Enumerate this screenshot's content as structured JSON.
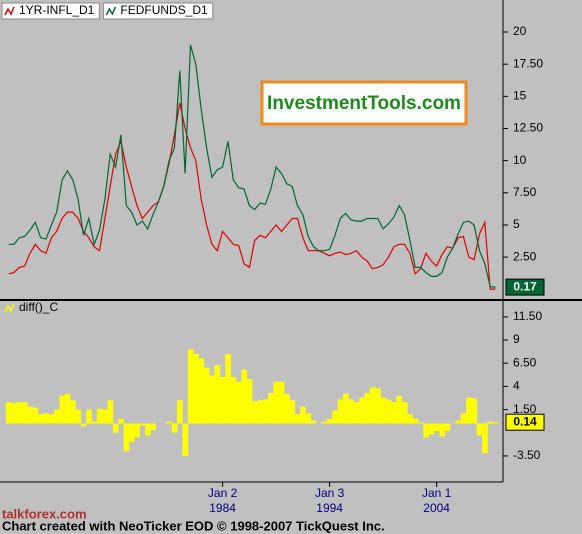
{
  "chart_data": [
    {
      "type": "line",
      "x": [
        1964,
        1964.5,
        1965,
        1965.5,
        1966,
        1966.5,
        1967,
        1967.5,
        1968,
        1968.5,
        1969,
        1969.5,
        1970,
        1970.5,
        1971,
        1971.5,
        1972,
        1972.5,
        1973,
        1973.5,
        1974,
        1974.5,
        1975,
        1975.5,
        1976,
        1976.5,
        1977,
        1977.5,
        1978,
        1978.5,
        1979,
        1979.5,
        1980,
        1980.5,
        1981,
        1981.5,
        1982,
        1982.5,
        1983,
        1983.5,
        1984,
        1984.5,
        1985,
        1985.5,
        1986,
        1986.5,
        1987,
        1987.5,
        1988,
        1988.5,
        1989,
        1989.5,
        1990,
        1990.5,
        1991,
        1991.5,
        1992,
        1992.5,
        1993,
        1993.5,
        1994,
        1994.5,
        1995,
        1995.5,
        1996,
        1996.5,
        1997,
        1997.5,
        1998,
        1998.5,
        1999,
        1999.5,
        2000,
        2000.5,
        2001,
        2001.5,
        2002,
        2002.5,
        2003,
        2003.5,
        2004,
        2004.5,
        2005,
        2005.5,
        2006,
        2006.5,
        2007,
        2007.5,
        2008,
        2008.5,
        2009,
        2009.5
      ],
      "series": [
        {
          "name": "1YR-INFL_D1",
          "color": "#e00000",
          "values": [
            1.2,
            1.3,
            1.7,
            1.8,
            2.8,
            3.5,
            3.0,
            2.8,
            4.0,
            4.5,
            5.5,
            6.0,
            6.0,
            5.5,
            4.5,
            4.0,
            3.3,
            3.0,
            5.5,
            8.0,
            10.5,
            11.5,
            9.5,
            8.0,
            6.5,
            5.5,
            6.0,
            6.5,
            6.8,
            8.0,
            9.8,
            12,
            14.5,
            12.5,
            11,
            10,
            7,
            5,
            3.5,
            3.0,
            4.5,
            4.0,
            3.5,
            3.4,
            2.0,
            1.7,
            3.8,
            4.2,
            4.0,
            4.5,
            5.0,
            4.5,
            5.0,
            5.5,
            5.5,
            4.0,
            3.0,
            3.0,
            3.0,
            2.8,
            2.6,
            2.8,
            2.9,
            2.7,
            2.8,
            3.0,
            2.5,
            2.2,
            1.6,
            1.7,
            1.9,
            2.5,
            3.3,
            3.5,
            3.5,
            2.8,
            1.2,
            1.6,
            2.8,
            2.2,
            1.8,
            2.7,
            3.3,
            3.2,
            4.0,
            4.1,
            2.5,
            2.3,
            4.3,
            5.2,
            0.0,
            0.03
          ]
        },
        {
          "name": "FEDFUNDS_D1",
          "color": "#006633",
          "values": [
            3.5,
            3.5,
            4.0,
            4.1,
            4.6,
            5.2,
            4.0,
            3.9,
            5.0,
            6.0,
            8.5,
            9.2,
            8.5,
            7.0,
            4.2,
            5.5,
            3.5,
            4.6,
            7.0,
            10.5,
            9.5,
            12.0,
            6.5,
            6.0,
            5.0,
            5.3,
            4.7,
            5.8,
            6.8,
            8.0,
            10.0,
            11.0,
            17.0,
            9.0,
            19.0,
            17.5,
            14.0,
            11.0,
            8.7,
            9.3,
            9.5,
            11.5,
            8.5,
            7.9,
            7.8,
            6.5,
            6.2,
            6.7,
            6.6,
            7.8,
            9.5,
            9.0,
            8.2,
            8.0,
            6.5,
            5.8,
            4.1,
            3.3,
            3.0,
            3.0,
            3.1,
            4.2,
            5.5,
            5.9,
            5.4,
            5.3,
            5.3,
            5.5,
            5.5,
            5.5,
            4.7,
            5.1,
            5.6,
            6.5,
            5.8,
            3.8,
            1.7,
            1.7,
            1.3,
            1.0,
            1.0,
            1.3,
            2.5,
            3.2,
            4.3,
            5.2,
            5.3,
            5.0,
            3.0,
            2.0,
            0.2,
            0.17
          ]
        }
      ],
      "xlim": [
        1963.2,
        2010.2
      ],
      "ylim": [
        -0.6,
        22.1
      ],
      "yticks": [
        {
          "value": 2.5,
          "label": "2.50"
        },
        5,
        {
          "value": 7.5,
          "label": "7.50"
        },
        10,
        {
          "value": 12.5,
          "label": "12.50"
        },
        15,
        {
          "value": 17.5,
          "label": "17.50"
        },
        20
      ]
    },
    {
      "type": "bar",
      "x": [
        1964,
        1964.5,
        1965,
        1965.5,
        1966,
        1966.5,
        1967,
        1967.5,
        1968,
        1968.5,
        1969,
        1969.5,
        1970,
        1970.5,
        1971,
        1971.5,
        1972,
        1972.5,
        1973,
        1973.5,
        1974,
        1974.5,
        1975,
        1975.5,
        1976,
        1976.5,
        1977,
        1977.5,
        1978,
        1978.5,
        1979,
        1979.5,
        1980,
        1980.5,
        1981,
        1981.5,
        1982,
        1982.5,
        1983,
        1983.5,
        1984,
        1984.5,
        1985,
        1985.5,
        1986,
        1986.5,
        1987,
        1987.5,
        1988,
        1988.5,
        1989,
        1989.5,
        1990,
        1990.5,
        1991,
        1991.5,
        1992,
        1992.5,
        1993,
        1993.5,
        1994,
        1994.5,
        1995,
        1995.5,
        1996,
        1996.5,
        1997,
        1997.5,
        1998,
        1998.5,
        1999,
        1999.5,
        2000,
        2000.5,
        2001,
        2001.5,
        2002,
        2002.5,
        2003,
        2003.5,
        2004,
        2004.5,
        2005,
        2005.5,
        2006,
        2006.5,
        2007,
        2007.5,
        2008,
        2008.5,
        2009,
        2009.5
      ],
      "series": [
        {
          "name": "diff()_C",
          "color": "#ffff00",
          "values": [
            2.3,
            2.2,
            2.3,
            2.3,
            1.8,
            1.7,
            1.0,
            1.1,
            1.0,
            1.5,
            3.0,
            3.2,
            2.5,
            1.5,
            -0.3,
            1.5,
            0.2,
            1.6,
            1.5,
            2.5,
            -1.0,
            0.5,
            -3.0,
            -2.0,
            -1.5,
            -0.2,
            -1.3,
            -0.7,
            0.0,
            0.0,
            0.2,
            -1.0,
            2.5,
            -3.5,
            8.0,
            7.5,
            7.0,
            6.0,
            5.2,
            6.3,
            5.0,
            7.5,
            5.0,
            4.5,
            5.8,
            4.8,
            2.4,
            2.5,
            2.6,
            3.3,
            4.5,
            4.5,
            3.2,
            2.5,
            1.0,
            1.8,
            1.1,
            0.3,
            0.0,
            0.2,
            0.5,
            1.4,
            2.6,
            3.2,
            2.6,
            2.3,
            2.8,
            3.3,
            3.9,
            3.8,
            2.8,
            2.6,
            2.3,
            3.0,
            2.3,
            1.0,
            0.5,
            0.1,
            -1.5,
            -1.2,
            -0.8,
            -1.4,
            -0.8,
            0.0,
            0.3,
            1.1,
            2.8,
            2.7,
            -1.3,
            -3.2,
            0.2,
            0.14
          ]
        }
      ],
      "xlim": [
        1963.2,
        2010.2
      ],
      "ylim": [
        -6.2,
        13.1
      ],
      "yticks": [
        {
          "value": -3.5,
          "label": "-3.50"
        },
        {
          "value": 1.5,
          "label": "1.50"
        },
        4,
        {
          "value": 6.5,
          "label": "6.50"
        },
        9,
        {
          "value": 11.5,
          "label": "11.50"
        }
      ],
      "xticks": [
        {
          "value": 1984,
          "label": "Jan 2"
        },
        {
          "value": 1994,
          "label": "Jan 3"
        },
        {
          "value": 2004,
          "label": "Jan 1"
        }
      ],
      "xtick_years": [
        "1984",
        "1994",
        "2004"
      ]
    }
  ],
  "logo": "InvestmentTools.com",
  "footer": "Chart created with NeoTicker EOD © 1998-2007 TickQuest Inc.",
  "watermark": "talkforex.com"
}
